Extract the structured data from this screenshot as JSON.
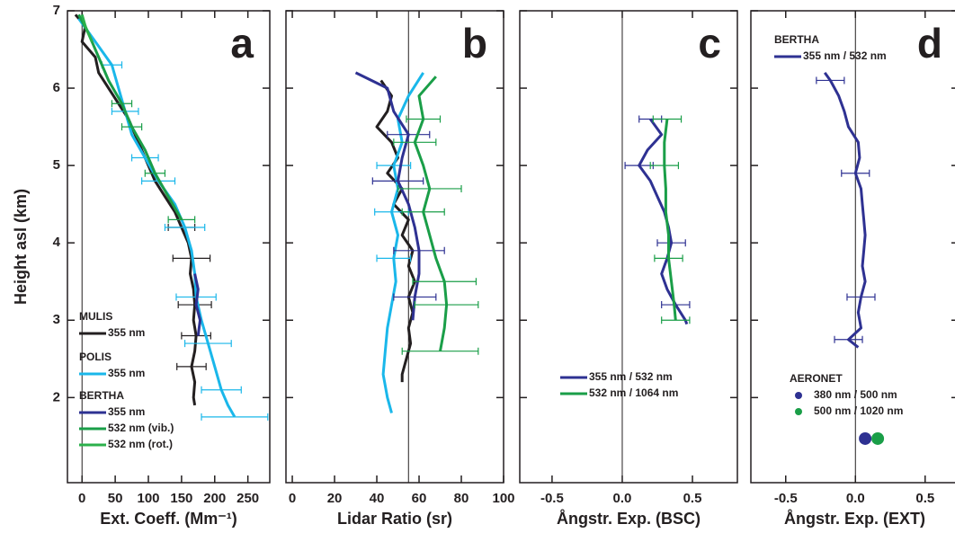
{
  "chart_data": [
    {
      "type": "line",
      "title": "a",
      "xlabel": "Ext. Coeff. (Mm⁻¹)",
      "ylabel": "Height asl (km)",
      "xlim": [
        -22,
        283
      ],
      "xticks": [
        0,
        50,
        100,
        150,
        200,
        250
      ],
      "ylim": [
        0.9,
        7
      ],
      "yticks": [
        2,
        3,
        4,
        5,
        6,
        7
      ],
      "refline": 0,
      "legend": true,
      "series": [
        {
          "group": "MULIS",
          "name": "355 nm",
          "color": "#231f20",
          "y": [
            6.95,
            6.8,
            6.6,
            6.4,
            6.2,
            6.0,
            5.8,
            5.6,
            5.4,
            5.2,
            5.0,
            4.8,
            4.6,
            4.4,
            4.2,
            4.0,
            3.8,
            3.6,
            3.4,
            3.2,
            3.0,
            2.8,
            2.6,
            2.4,
            2.2,
            2.0,
            1.9
          ],
          "x": [
            -10,
            5,
            0,
            20,
            25,
            40,
            55,
            70,
            80,
            90,
            100,
            110,
            125,
            140,
            150,
            160,
            165,
            163,
            168,
            170,
            168,
            172,
            170,
            165,
            170,
            168,
            170
          ],
          "xerr": [
            null,
            null,
            null,
            null,
            null,
            null,
            null,
            null,
            null,
            null,
            null,
            null,
            null,
            null,
            20,
            null,
            28,
            null,
            null,
            25,
            null,
            22,
            null,
            22,
            null,
            null,
            null
          ]
        },
        {
          "group": "POLIS",
          "name": "355 nm",
          "color": "#1ab7ea",
          "y": [
            6.9,
            6.6,
            6.3,
            6.0,
            5.7,
            5.4,
            5.1,
            4.8,
            4.5,
            4.2,
            3.9,
            3.6,
            3.3,
            3.0,
            2.7,
            2.4,
            2.1,
            1.9,
            1.75
          ],
          "x": [
            -5,
            20,
            45,
            55,
            65,
            75,
            95,
            115,
            140,
            155,
            165,
            170,
            172,
            180,
            190,
            200,
            210,
            220,
            230
          ],
          "xerr": [
            null,
            null,
            15,
            null,
            20,
            null,
            20,
            25,
            null,
            30,
            null,
            null,
            30,
            null,
            35,
            null,
            30,
            null,
            50
          ]
        },
        {
          "group": "BERTHA",
          "name": "355 nm",
          "color": "#2e3192",
          "y": [
            3.6,
            3.4,
            3.2,
            3.0,
            2.8
          ],
          "x": [
            170,
            175,
            172,
            178,
            175
          ],
          "xerr": [
            null,
            null,
            null,
            null,
            null
          ]
        },
        {
          "group": "BERTHA",
          "name": "532 nm (vib.)",
          "color": "#1a9e48",
          "y": [
            6.95,
            6.7,
            6.4,
            6.1,
            5.8,
            5.5,
            5.2,
            4.9,
            4.6,
            4.3
          ],
          "x": [
            -5,
            10,
            25,
            40,
            60,
            75,
            95,
            110,
            130,
            150
          ],
          "xerr": [
            null,
            null,
            null,
            null,
            15,
            15,
            null,
            15,
            null,
            20
          ]
        },
        {
          "group": "BERTHA",
          "name": "532 nm (rot.)",
          "color": "#2bb04b",
          "y": [
            6.95,
            6.8,
            6.6
          ],
          "x": [
            0,
            5,
            15
          ],
          "xerr": [
            null,
            null,
            null
          ]
        }
      ]
    },
    {
      "type": "line",
      "title": "b",
      "xlabel": "Lidar Ratio (sr)",
      "xlim": [
        -3,
        100
      ],
      "xticks": [
        0,
        20,
        40,
        60,
        80,
        100
      ],
      "ylim": [
        0.9,
        7
      ],
      "yticks": [
        2,
        3,
        4,
        5,
        6,
        7
      ],
      "ytick_labels": false,
      "refline": 55,
      "legend": false,
      "series": [
        {
          "color": "#231f20",
          "y": [
            6.1,
            5.9,
            5.7,
            5.5,
            5.3,
            5.1,
            4.9,
            4.7,
            4.5,
            4.3,
            4.1,
            3.9,
            3.7,
            3.5,
            3.3,
            3.1,
            2.9,
            2.7,
            2.5,
            2.3,
            2.2
          ],
          "x": [
            42,
            47,
            45,
            40,
            47,
            50,
            45,
            52,
            48,
            55,
            52,
            57,
            55,
            58,
            55,
            57,
            55,
            56,
            54,
            52,
            52
          ],
          "xerr": [
            null,
            null,
            null,
            null,
            null,
            null,
            null,
            null,
            null,
            null,
            null,
            null,
            null,
            null,
            null,
            null,
            null,
            null,
            null,
            null,
            null
          ]
        },
        {
          "color": "#1ab7ea",
          "y": [
            6.2,
            5.9,
            5.6,
            5.3,
            5.0,
            4.7,
            4.4,
            4.1,
            3.8,
            3.5,
            3.2,
            2.9,
            2.6,
            2.3,
            2.0,
            1.8
          ],
          "x": [
            62,
            55,
            50,
            52,
            48,
            50,
            47,
            50,
            48,
            49,
            47,
            45,
            44,
            43,
            45,
            47
          ],
          "xerr": [
            null,
            null,
            null,
            null,
            8,
            null,
            8,
            null,
            8,
            null,
            null,
            null,
            null,
            null,
            null,
            null
          ]
        },
        {
          "color": "#2e3192",
          "y": [
            6.2,
            6.0,
            5.7,
            5.4,
            5.1,
            4.8,
            4.5,
            4.2,
            3.9,
            3.6,
            3.3,
            3.0
          ],
          "x": [
            30,
            45,
            48,
            55,
            52,
            50,
            55,
            58,
            60,
            60,
            58,
            57
          ],
          "xerr": [
            null,
            null,
            null,
            10,
            null,
            12,
            null,
            null,
            12,
            null,
            10,
            null
          ]
        },
        {
          "color": "#1a9e48",
          "y": [
            6.15,
            5.9,
            5.6,
            5.3,
            5.0,
            4.7,
            4.4,
            4.1,
            3.8,
            3.5,
            3.2,
            2.9,
            2.6
          ],
          "x": [
            68,
            60,
            62,
            58,
            62,
            65,
            62,
            65,
            68,
            72,
            73,
            72,
            70
          ],
          "xerr": [
            null,
            null,
            8,
            10,
            null,
            15,
            10,
            null,
            null,
            15,
            15,
            null,
            18
          ]
        }
      ]
    },
    {
      "type": "line",
      "title": "c",
      "xlabel": "Ångstr. Exp. (BSC)",
      "xlim": [
        -0.73,
        0.82
      ],
      "xticks": [
        -0.5,
        {
          "value": 0,
          "label": "0.0"
        },
        0.5
      ],
      "ylim": [
        0.9,
        7
      ],
      "yticks": [
        2,
        3,
        4,
        5,
        6,
        7
      ],
      "ytick_labels": false,
      "refline": 0,
      "legend": true,
      "series": [
        {
          "name": "355 nm / 532 nm",
          "color": "#2e3192",
          "y": [
            5.6,
            5.4,
            5.2,
            5.0,
            4.8,
            4.6,
            4.4,
            4.2,
            4.0,
            3.8,
            3.6,
            3.4,
            3.2,
            3.0,
            2.95
          ],
          "x": [
            0.2,
            0.28,
            0.18,
            0.12,
            0.2,
            0.25,
            0.3,
            0.33,
            0.35,
            0.32,
            0.28,
            0.32,
            0.38,
            0.45,
            0.46
          ],
          "xerr": [
            0.08,
            null,
            null,
            0.1,
            null,
            null,
            null,
            null,
            0.1,
            null,
            null,
            null,
            0.1,
            null,
            null
          ]
        },
        {
          "name": "532 nm / 1064 nm",
          "color": "#1a9e48",
          "y": [
            5.6,
            5.3,
            5.0,
            4.7,
            4.4,
            4.1,
            3.8,
            3.5,
            3.2,
            3.0
          ],
          "x": [
            0.32,
            0.3,
            0.3,
            0.31,
            0.31,
            0.33,
            0.33,
            0.35,
            0.37,
            0.38
          ],
          "xerr": [
            0.1,
            null,
            0.1,
            null,
            null,
            null,
            0.1,
            null,
            null,
            0.1
          ]
        }
      ]
    },
    {
      "type": "line",
      "title": "d",
      "xlabel": "Ångstr. Exp. (EXT)",
      "xlim": [
        -0.75,
        0.74
      ],
      "xticks": [
        -0.5,
        {
          "value": 0,
          "label": "0.0"
        },
        0.5
      ],
      "ylim": [
        0.9,
        7
      ],
      "yticks": [
        2,
        3,
        4,
        5,
        6,
        7
      ],
      "ytick_labels": false,
      "refline": 0,
      "legend": true,
      "series": [
        {
          "group": "BERTHA",
          "name": "355 nm / 532 nm",
          "color": "#2e3192",
          "y": [
            6.2,
            6.1,
            5.9,
            5.7,
            5.5,
            5.3,
            5.1,
            4.9,
            4.7,
            4.5,
            4.3,
            4.1,
            3.9,
            3.7,
            3.5,
            3.3,
            3.1,
            2.9,
            2.75,
            2.65
          ],
          "x": [
            -0.22,
            -0.18,
            -0.12,
            -0.08,
            -0.05,
            0.02,
            0.03,
            0.0,
            0.04,
            0.05,
            0.06,
            0.07,
            0.06,
            0.05,
            0.07,
            0.04,
            0.02,
            0.04,
            -0.05,
            0.02
          ],
          "xerr": [
            null,
            0.1,
            null,
            null,
            null,
            null,
            null,
            0.1,
            null,
            null,
            null,
            null,
            null,
            null,
            null,
            0.1,
            null,
            null,
            0.1,
            null
          ]
        },
        {
          "group": "AERONET",
          "name": "380 nm / 500 nm",
          "color": "#2e3192",
          "marker": true,
          "y": [
            1.47
          ],
          "x": [
            0.07
          ]
        },
        {
          "group": "AERONET",
          "name": "500 nm / 1020 nm",
          "color": "#1a9e48",
          "marker": true,
          "y": [
            1.47
          ],
          "x": [
            0.16
          ]
        }
      ]
    }
  ]
}
